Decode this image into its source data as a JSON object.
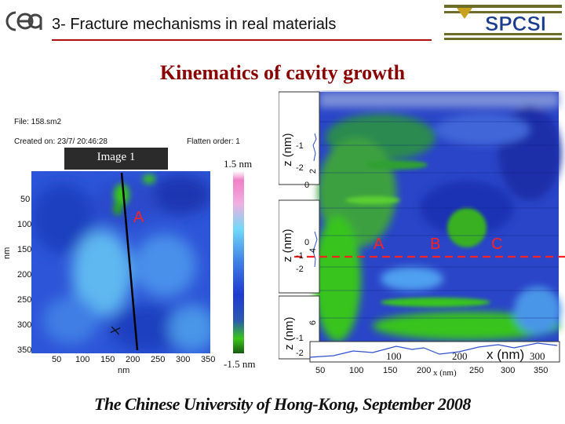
{
  "header": {
    "title": "3- Fracture mechanisms in real materials",
    "logo_left": "cea",
    "logo_right": "SPCSI"
  },
  "slide_title": "Kinematics of cavity growth",
  "afm_panel": {
    "file_line": "File: 158.sm2",
    "created_line": "Created on: 23/7/ 20:46:28",
    "flatten_line": "Flatten order: 1",
    "image_label": "Image 1",
    "y_axis_label": "nm",
    "x_axis_label": "nm",
    "y_ticks": [
      "50",
      "100",
      "150",
      "200",
      "250",
      "300",
      "350"
    ],
    "x_ticks": [
      "50",
      "100",
      "150",
      "200",
      "250",
      "300",
      "350"
    ],
    "marker_a": "A",
    "marker_end": "X",
    "colorbar_max": "1.5 nm",
    "colorbar_min": "-1.5 nm"
  },
  "profile_panel": {
    "z_label": "z (nm)",
    "x_label": "x (nm)",
    "x_label_overlay": "x (nm)",
    "x_ticks": [
      "50",
      "100",
      "150",
      "200",
      "250",
      "300",
      "350"
    ],
    "x_ticks_overlay": [
      "100",
      "200",
      "300"
    ],
    "profile_top_ticks": [
      "-1",
      "-2",
      "0"
    ],
    "profile_mid_ticks": [
      "0",
      "-1",
      "-2"
    ],
    "profile_bot_ticks": [
      "-1",
      "-2"
    ],
    "side_ticks": [
      "2",
      "4",
      "6"
    ],
    "markers": [
      "A",
      "B",
      "C"
    ]
  },
  "footer": "The Chinese University of Hong-Kong, September 2008",
  "colors": {
    "title_red": "#8b0000",
    "rule_red": "#b01010",
    "marker_red": "#ff2020",
    "map_blue": "#2d55d8",
    "map_green": "#39c41a"
  }
}
